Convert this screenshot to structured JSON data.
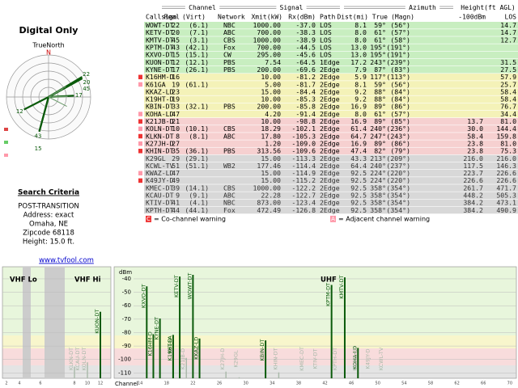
{
  "header": {
    "title": "Digital Only"
  },
  "compass": {
    "label": "TrueNorth",
    "north": "N"
  },
  "search": {
    "title": "Search Criteria",
    "lines": [
      "POST-TRANSITION",
      "Address: exact",
      "Omaha, NE",
      "Zipcode 68118",
      "Height: 15.0 ft."
    ]
  },
  "link": "www.tvfool.com",
  "table": {
    "groups": [
      "Channel",
      "Signal",
      "Azimuth",
      "Height(ft AGL)"
    ],
    "columns": [
      "Callsign",
      "Real",
      "(Virt)",
      "Network",
      "Xmit(kW)",
      "Rx(dBm)",
      "Path",
      "Dist(mi)",
      "True",
      "(Magn)",
      "-100dBm",
      "LOS"
    ],
    "rows": [
      [
        "WOWT-DT",
        22,
        "(6.1)",
        "NBC",
        "1000.00",
        "-37.0",
        "LOS",
        "8.1",
        "59°",
        "(56°)",
        null,
        "14.7"
      ],
      [
        "KETV-DT",
        20,
        "(7.1)",
        "ABC",
        "700.00",
        "-38.3",
        "LOS",
        "8.0",
        "61°",
        "(57°)",
        null,
        "14.7"
      ],
      [
        "KMTV-DT",
        45,
        "(3.1)",
        "CBS",
        "1000.00",
        "-38.9",
        "LOS",
        "8.0",
        "61°",
        "(58°)",
        null,
        "12.7"
      ],
      [
        "KPTM-DT",
        43,
        "(42.1)",
        "Fox",
        "700.00",
        "-44.5",
        "LOS",
        "13.0",
        "195°",
        "(191°)",
        null,
        null
      ],
      [
        "KXVO-DT",
        15,
        "(15.1)",
        "CW",
        "295.00",
        "-45.6",
        "LOS",
        "13.0",
        "195°",
        "(191°)",
        null,
        null
      ],
      [
        "KUON-DT",
        12,
        "(12.1)",
        "PBS",
        "7.54",
        "-64.5",
        "1Edge",
        "17.2",
        "243°",
        "(239°)",
        null,
        "31.5"
      ],
      [
        "KYNE-DT",
        17,
        "(26.1)",
        "PBS",
        "200.00",
        "-69.6",
        "2Edge",
        "7.9",
        "87°",
        "(83°)",
        null,
        "27.5"
      ],
      [
        "K16HM-D",
        16,
        null,
        null,
        "10.00",
        "-81.2",
        "2Edge",
        "5.9",
        "117°",
        "(113°)",
        null,
        "57.9"
      ],
      [
        "K61GA",
        19,
        "(61.1)",
        null,
        "5.00",
        "-81.7",
        "2Edge",
        "8.1",
        "59°",
        "(56°)",
        null,
        "25.7"
      ],
      [
        "KKAZ-LD",
        23,
        null,
        null,
        "15.00",
        "-84.4",
        "2Edge",
        "9.2",
        "88°",
        "(84°)",
        null,
        "58.4"
      ],
      [
        "K19HT-D",
        19,
        null,
        null,
        "10.00",
        "-85.3",
        "2Edge",
        "9.2",
        "88°",
        "(84°)",
        null,
        "58.4"
      ],
      [
        "KBIN-DT",
        33,
        "(32.1)",
        "PBS",
        "200.00",
        "-85.8",
        "2Edge",
        "16.9",
        "89°",
        "(86°)",
        null,
        "76.7"
      ],
      [
        "KOHA-LD",
        47,
        null,
        null,
        "4.20",
        "-91.4",
        "2Edge",
        "8.0",
        "61°",
        "(57°)",
        null,
        "34.4"
      ],
      [
        "K21JB-D",
        21,
        null,
        null,
        "10.00",
        "-98.8",
        "2Edge",
        "16.9",
        "89°",
        "(85°)",
        "13.7",
        "81.0"
      ],
      [
        "KOLN-DT",
        10,
        "(10.1)",
        "CBS",
        "18.29",
        "-102.1",
        "2Edge",
        "61.4",
        "240°",
        "(236°)",
        "30.0",
        "144.4"
      ],
      [
        "KLKN-DT",
        8,
        "(8.1)",
        "ABC",
        "17.80",
        "-105.3",
        "2Edge",
        "64.7",
        "247°",
        "(243°)",
        "58.4",
        "159.8"
      ],
      [
        "K27JH-D",
        27,
        null,
        null,
        "1.20",
        "-109.0",
        "2Edge",
        "16.9",
        "89°",
        "(86°)",
        "23.8",
        "81.0"
      ],
      [
        "KHIN-DT",
        35,
        "(36.1)",
        "PBS",
        "313.56",
        "-109.6",
        "2Edge",
        "47.4",
        "82°",
        "(79°)",
        "23.8",
        "75.3"
      ],
      [
        "K29GL",
        29,
        "(29.1)",
        null,
        "15.00",
        "-113.3",
        "2Edge",
        "43.3",
        "213°",
        "(209°)",
        "216.0",
        "216.0"
      ],
      [
        "KCWL-TV",
        51,
        "(51.1)",
        "WB2",
        "177.46",
        "-114.4",
        "2Edge",
        "64.4",
        "240°",
        "(237°)",
        "117.5",
        "146.3"
      ],
      [
        "KWAZ-LD",
        47,
        null,
        null,
        "15.00",
        "-114.9",
        "2Edge",
        "92.5",
        "224°",
        "(220°)",
        "223.7",
        "226.6"
      ],
      [
        "K49JY-D",
        49,
        null,
        null,
        "15.00",
        "-115.2",
        "2Edge",
        "92.5",
        "224°",
        "(220°)",
        "226.6",
        "226.6"
      ],
      [
        "KMEC-DT",
        39,
        "(14.1)",
        "CBS",
        "1000.00",
        "-122.2",
        "2Edge",
        "92.5",
        "358°",
        "(354°)",
        "261.7",
        "471.7"
      ],
      [
        "KCAU-DT",
        9,
        "(9.1)",
        "ABC",
        "22.28",
        "-122.7",
        "2Edge",
        "92.5",
        "358°",
        "(354°)",
        "448.2",
        "505.3"
      ],
      [
        "KTIV-DT",
        41,
        "(4.1)",
        "NBC",
        "873.00",
        "-123.4",
        "2Edge",
        "92.5",
        "358°",
        "(354°)",
        "384.2",
        "473.1"
      ],
      [
        "KPTH-DT",
        44,
        "(44.1)",
        "Fox",
        "472.49",
        "-126.8",
        "2Edge",
        "92.5",
        "358°",
        "(354°)",
        "384.2",
        "490.9"
      ]
    ]
  },
  "legend": [
    {
      "key": "C",
      "text": "= Co-channel warning"
    },
    {
      "key": "A",
      "text": "= Adjacent channel warning"
    }
  ],
  "spectrum": {
    "bands": [
      "VHF Lo",
      "VHF Hi",
      "UHF"
    ],
    "y_label": "dBm",
    "x_label": "Channel",
    "ylim": [
      -31,
      -114
    ],
    "yticks": [
      -40,
      -50,
      -60,
      -70,
      -80,
      -90,
      -100,
      -110
    ],
    "uhf_xlim": [
      13,
      71
    ],
    "vhf_xticks": [
      2,
      4,
      6,
      8,
      10,
      12
    ],
    "uhf_xticks": [
      14,
      18,
      22,
      26,
      30,
      34,
      38,
      42,
      46,
      50,
      54,
      58,
      62,
      66,
      70
    ]
  }
}
